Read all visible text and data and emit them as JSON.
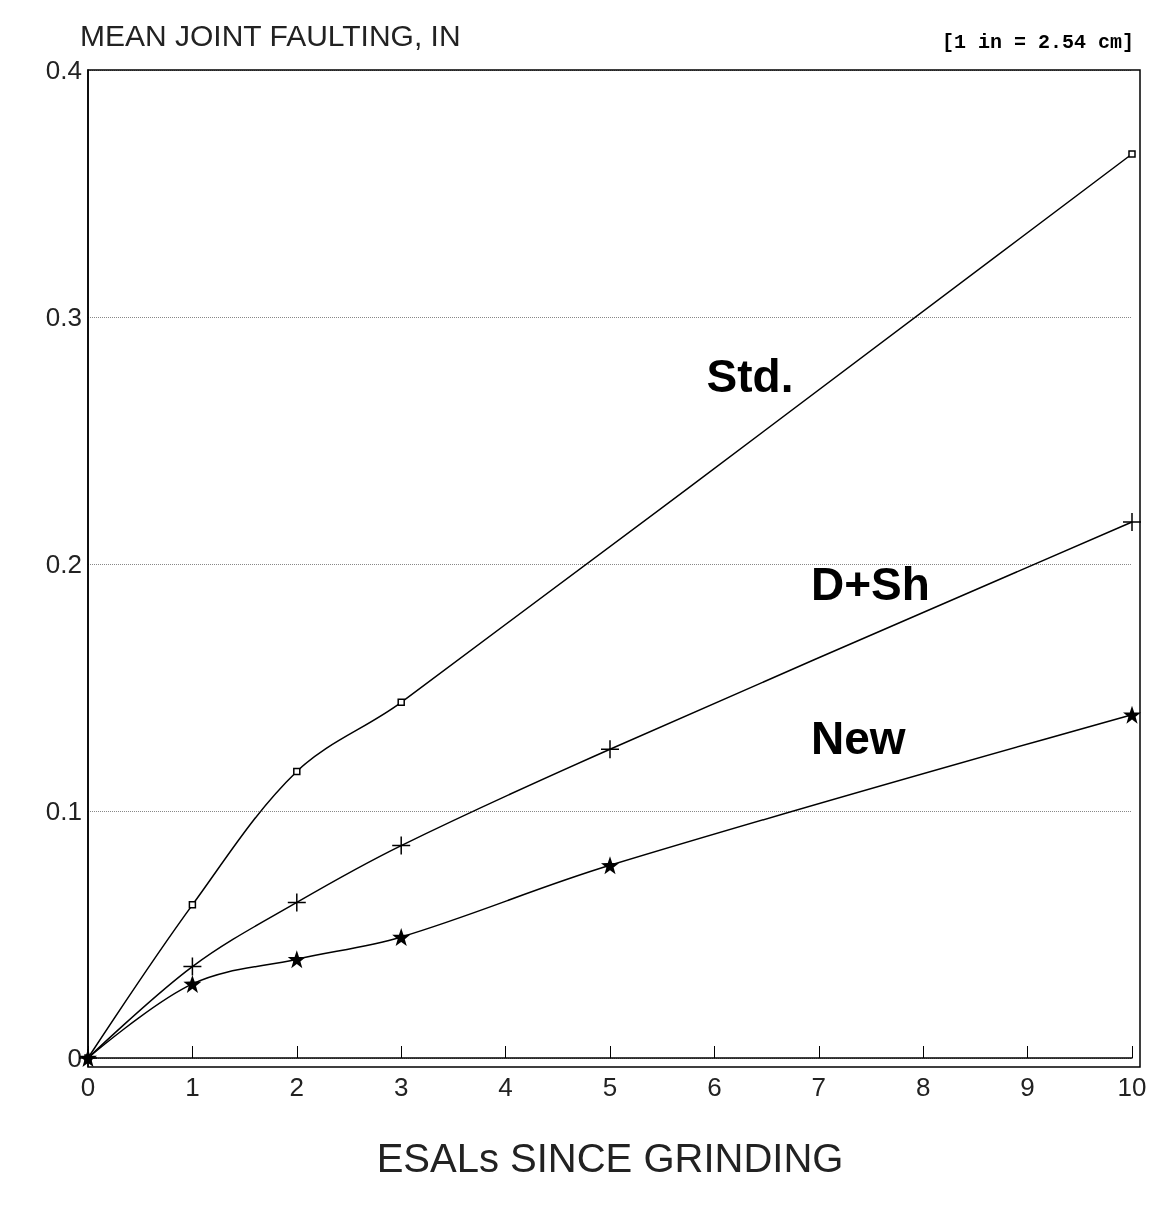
{
  "chart_data": {
    "type": "line",
    "ylabel": "MEAN JOINT FAULTING, IN",
    "xlabel": "ESALs SINCE GRINDING",
    "annotations": [
      "[1 in = 2.54 cm]"
    ],
    "xlim": [
      0,
      10
    ],
    "xticks": [
      0,
      1,
      2,
      3,
      4,
      5,
      6,
      7,
      8,
      9,
      10
    ],
    "ylim": [
      0,
      0.4
    ],
    "yticks": [
      0,
      0.1,
      0.2,
      0.3,
      0.4
    ],
    "grid": "y",
    "legend": false,
    "series": [
      {
        "name": "Std.",
        "color": "#000000",
        "marker": "square",
        "x": [
          0,
          1,
          2,
          3,
          10
        ],
        "values": [
          0,
          0.062,
          0.116,
          0.144,
          0.366
        ]
      },
      {
        "name": "D+Sh",
        "color": "#000000",
        "marker": "cross",
        "x": [
          0,
          1,
          2,
          3,
          5,
          10
        ],
        "values": [
          0,
          0.037,
          0.063,
          0.086,
          0.125,
          0.217
        ]
      },
      {
        "name": "New",
        "color": "#000000",
        "marker": "star",
        "x": [
          0,
          1,
          2,
          3,
          5,
          10
        ],
        "values": [
          0,
          0.03,
          0.04,
          0.049,
          0.078,
          0.139
        ]
      }
    ]
  }
}
